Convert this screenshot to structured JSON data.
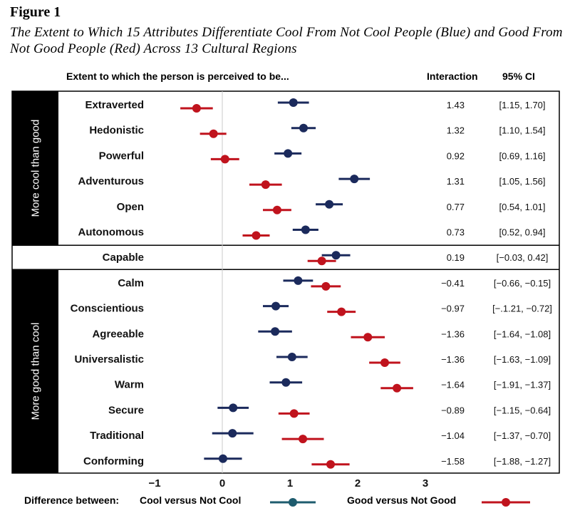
{
  "figure": {
    "label": "Figure 1",
    "title": "The Extent to Which 15 Attributes Differentiate Cool From Not Cool People (Blue) and Good From Not Good People (Red) Across 13 Cultural Regions"
  },
  "headers": {
    "extent": "Extent to which the person is perceived to be...",
    "interaction": "Interaction",
    "ci": "95% CI"
  },
  "groups": {
    "cool": "More cool than good",
    "good": "More good than cool"
  },
  "legend": {
    "prefix": "Difference between:",
    "cool_label": "Cool versus Not Cool",
    "good_label": "Good versus Not Good"
  },
  "colors": {
    "cool": "#1b2a5c",
    "good": "#c0131d",
    "legend_cool": "#1e5c6e",
    "sidebar": "#000000"
  },
  "chart_data": {
    "type": "scatter",
    "title": "The Extent to Which 15 Attributes Differentiate Cool From Not Cool People (Blue) and Good From Not Good People (Red) Across 13 Cultural Regions",
    "xlabel": "",
    "ylabel": "Extent to which the person is perceived to be...",
    "xlim": [
      -1,
      3
    ],
    "xticks": [
      -1,
      0,
      1,
      2,
      3
    ],
    "reference_line": 0,
    "series": [
      {
        "name": "Cool versus Not Cool",
        "color": "#1b2a5c"
      },
      {
        "name": "Good versus Not Good",
        "color": "#c0131d"
      }
    ],
    "rows": [
      {
        "attribute": "Extraverted",
        "group": "cool",
        "cool": 1.05,
        "cool_lo": 0.82,
        "cool_hi": 1.28,
        "good": -0.38,
        "good_lo": -0.62,
        "good_hi": -0.14,
        "interaction": "1.43",
        "ci": "[1.15, 1.70]"
      },
      {
        "attribute": "Hedonistic",
        "group": "cool",
        "cool": 1.2,
        "cool_lo": 1.02,
        "cool_hi": 1.38,
        "good": -0.13,
        "good_lo": -0.33,
        "good_hi": 0.06,
        "interaction": "1.32",
        "ci": "[1.10, 1.54]"
      },
      {
        "attribute": "Powerful",
        "group": "cool",
        "cool": 0.97,
        "cool_lo": 0.77,
        "cool_hi": 1.17,
        "good": 0.04,
        "good_lo": -0.17,
        "good_hi": 0.25,
        "interaction": "0.92",
        "ci": "[0.69, 1.16]"
      },
      {
        "attribute": "Adventurous",
        "group": "cool",
        "cool": 1.95,
        "cool_lo": 1.72,
        "cool_hi": 2.18,
        "good": 0.64,
        "good_lo": 0.4,
        "good_hi": 0.88,
        "interaction": "1.31",
        "ci": "[1.05, 1.56]"
      },
      {
        "attribute": "Open",
        "group": "cool",
        "cool": 1.58,
        "cool_lo": 1.38,
        "cool_hi": 1.78,
        "good": 0.81,
        "good_lo": 0.6,
        "good_hi": 1.02,
        "interaction": "0.77",
        "ci": "[0.54, 1.01]"
      },
      {
        "attribute": "Autonomous",
        "group": "cool",
        "cool": 1.23,
        "cool_lo": 1.04,
        "cool_hi": 1.42,
        "good": 0.5,
        "good_lo": 0.3,
        "good_hi": 0.7,
        "interaction": "0.73",
        "ci": "[0.52, 0.94]"
      },
      {
        "attribute": "Capable",
        "group": "neutral",
        "cool": 1.68,
        "cool_lo": 1.47,
        "cool_hi": 1.89,
        "good": 1.47,
        "good_lo": 1.26,
        "good_hi": 1.68,
        "interaction": "0.19",
        "ci": "[−0.03, 0.42]"
      },
      {
        "attribute": "Calm",
        "group": "good",
        "cool": 1.12,
        "cool_lo": 0.9,
        "cool_hi": 1.34,
        "good": 1.53,
        "good_lo": 1.31,
        "good_hi": 1.75,
        "interaction": "−0.41",
        "ci": "[−0.66, −0.15]"
      },
      {
        "attribute": "Conscientious",
        "group": "good",
        "cool": 0.79,
        "cool_lo": 0.6,
        "cool_hi": 0.98,
        "good": 1.76,
        "good_lo": 1.55,
        "good_hi": 1.97,
        "interaction": "−0.97",
        "ci": "[−.1.21, −0.72]"
      },
      {
        "attribute": "Agreeable",
        "group": "good",
        "cool": 0.78,
        "cool_lo": 0.53,
        "cool_hi": 1.03,
        "good": 2.15,
        "good_lo": 1.9,
        "good_hi": 2.4,
        "interaction": "−1.36",
        "ci": "[−1.64, −1.08]"
      },
      {
        "attribute": "Universalistic",
        "group": "good",
        "cool": 1.03,
        "cool_lo": 0.8,
        "cool_hi": 1.26,
        "good": 2.4,
        "good_lo": 2.17,
        "good_hi": 2.63,
        "interaction": "−1.36",
        "ci": "[−1.63, −1.09]"
      },
      {
        "attribute": "Warm",
        "group": "good",
        "cool": 0.94,
        "cool_lo": 0.7,
        "cool_hi": 1.18,
        "good": 2.58,
        "good_lo": 2.34,
        "good_hi": 2.82,
        "interaction": "−1.64",
        "ci": "[−1.91, −1.37]"
      },
      {
        "attribute": "Secure",
        "group": "good",
        "cool": 0.16,
        "cool_lo": -0.07,
        "cool_hi": 0.39,
        "good": 1.06,
        "good_lo": 0.83,
        "good_hi": 1.29,
        "interaction": "−0.89",
        "ci": "[−1.15, −0.64]"
      },
      {
        "attribute": "Traditional",
        "group": "good",
        "cool": 0.15,
        "cool_lo": -0.15,
        "cool_hi": 0.46,
        "good": 1.19,
        "good_lo": 0.88,
        "good_hi": 1.5,
        "interaction": "−1.04",
        "ci": "[−1.37, −0.70]"
      },
      {
        "attribute": "Conforming",
        "group": "good",
        "cool": 0.01,
        "cool_lo": -0.27,
        "cool_hi": 0.29,
        "good": 1.6,
        "good_lo": 1.32,
        "good_hi": 1.88,
        "interaction": "−1.58",
        "ci": "[−1.88, −1.27]"
      }
    ]
  }
}
